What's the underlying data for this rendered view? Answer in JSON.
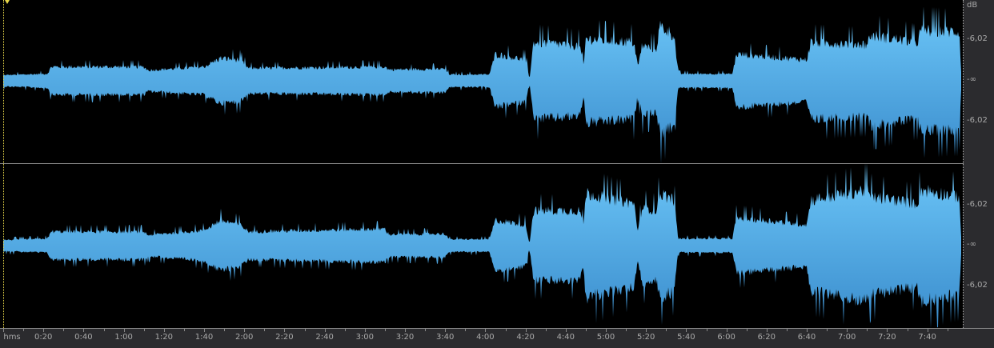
{
  "db_scale": {
    "unit": "dB",
    "channel1": [
      "-6,02",
      "-∞",
      "-6,02"
    ],
    "channel2": [
      "-6,02",
      "-∞",
      "-6,02"
    ]
  },
  "ruler": {
    "format_label": "hms",
    "labels": [
      "0:20",
      "0:40",
      "1:00",
      "1:20",
      "1:40",
      "2:00",
      "2:20",
      "2:40",
      "3:00",
      "3:20",
      "3:40",
      "4:00",
      "4:20",
      "4:40",
      "5:00",
      "5:20",
      "5:40",
      "6:00",
      "6:20",
      "6:40",
      "7:00",
      "7:20",
      "7:40"
    ]
  },
  "colors": {
    "waveform_top": "#6cc6f8",
    "waveform_bottom": "#3a8ccc",
    "background": "#000000",
    "panel": "#2b2b2e",
    "cursor": "#e8d84a"
  },
  "waveform": {
    "duration_s": 477,
    "channels": 2,
    "envelope_ch1": [
      [
        0,
        0.08
      ],
      [
        22,
        0.1
      ],
      [
        24,
        0.2
      ],
      [
        70,
        0.2
      ],
      [
        72,
        0.15
      ],
      [
        100,
        0.2
      ],
      [
        108,
        0.32
      ],
      [
        118,
        0.3
      ],
      [
        122,
        0.18
      ],
      [
        190,
        0.2
      ],
      [
        192,
        0.16
      ],
      [
        220,
        0.17
      ],
      [
        222,
        0.09
      ],
      [
        242,
        0.09
      ],
      [
        245,
        0.38
      ],
      [
        260,
        0.3
      ],
      [
        262,
        0.03
      ],
      [
        264,
        0.55
      ],
      [
        287,
        0.5
      ],
      [
        289,
        0.2
      ],
      [
        290,
        0.6
      ],
      [
        314,
        0.55
      ],
      [
        316,
        0.2
      ],
      [
        318,
        0.5
      ],
      [
        325,
        0.45
      ],
      [
        327,
        0.78
      ],
      [
        334,
        0.65
      ],
      [
        336,
        0.1
      ],
      [
        363,
        0.1
      ],
      [
        365,
        0.38
      ],
      [
        400,
        0.3
      ],
      [
        402,
        0.55
      ],
      [
        430,
        0.52
      ],
      [
        432,
        0.65
      ],
      [
        455,
        0.55
      ],
      [
        457,
        0.72
      ],
      [
        476,
        0.7
      ],
      [
        477,
        0.05
      ]
    ],
    "envelope_ch2": [
      [
        0,
        0.08
      ],
      [
        22,
        0.1
      ],
      [
        24,
        0.2
      ],
      [
        70,
        0.2
      ],
      [
        72,
        0.15
      ],
      [
        100,
        0.22
      ],
      [
        108,
        0.36
      ],
      [
        118,
        0.3
      ],
      [
        122,
        0.2
      ],
      [
        190,
        0.24
      ],
      [
        192,
        0.16
      ],
      [
        220,
        0.17
      ],
      [
        222,
        0.09
      ],
      [
        242,
        0.09
      ],
      [
        245,
        0.36
      ],
      [
        260,
        0.3
      ],
      [
        262,
        0.03
      ],
      [
        264,
        0.5
      ],
      [
        287,
        0.5
      ],
      [
        289,
        0.3
      ],
      [
        290,
        0.75
      ],
      [
        314,
        0.6
      ],
      [
        316,
        0.2
      ],
      [
        318,
        0.55
      ],
      [
        325,
        0.5
      ],
      [
        327,
        0.75
      ],
      [
        334,
        0.65
      ],
      [
        336,
        0.1
      ],
      [
        363,
        0.1
      ],
      [
        365,
        0.4
      ],
      [
        400,
        0.3
      ],
      [
        402,
        0.65
      ],
      [
        430,
        0.8
      ],
      [
        432,
        0.7
      ],
      [
        455,
        0.6
      ],
      [
        457,
        0.8
      ],
      [
        476,
        0.7
      ],
      [
        477,
        0.05
      ]
    ]
  }
}
